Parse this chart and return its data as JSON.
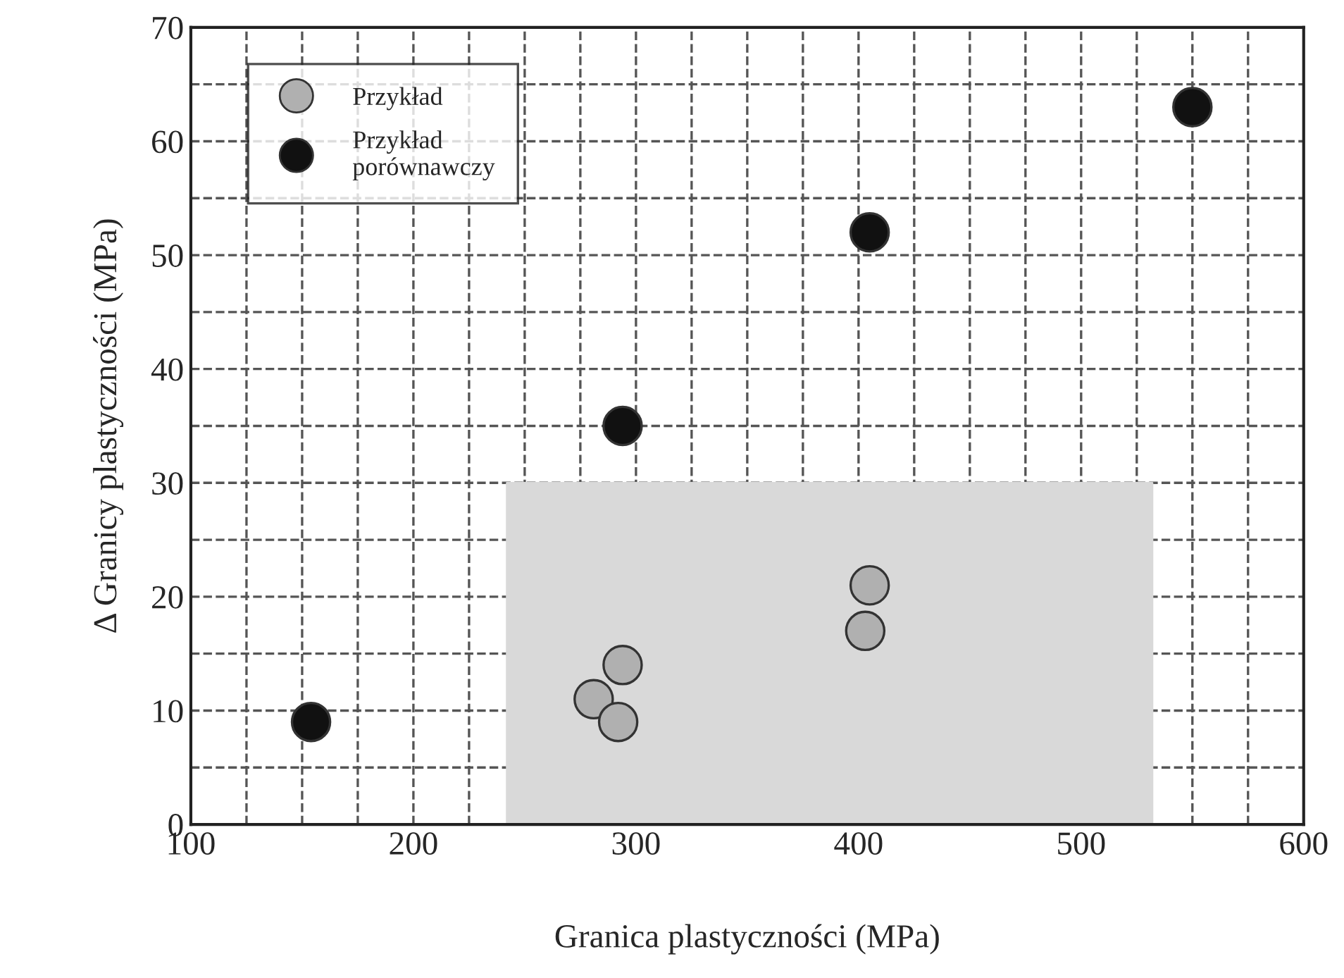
{
  "chart_data": {
    "type": "scatter",
    "xlabel": "Granica plastyczności (MPa)",
    "ylabel": "Δ Granicy plastyczności (MPa)",
    "series": [
      {
        "type": "area",
        "color": "#d9d9d9",
        "x": [
          242,
          532
        ],
        "values": [
          30,
          30
        ]
      },
      {
        "name": "Przykład",
        "color": "#b0b0b0",
        "marker": "circle",
        "x": [
          281,
          292,
          294,
          403,
          405
        ],
        "values": [
          11,
          9,
          14,
          17,
          21
        ]
      },
      {
        "name": "Przykład\nporównawczy",
        "color": "#111111",
        "marker": "circle",
        "x": [
          154,
          294,
          405,
          550
        ],
        "values": [
          9,
          35,
          52,
          63
        ]
      }
    ],
    "xlim": [
      100,
      600
    ],
    "xticks": [
      100,
      {
        "value": 125,
        "label": null
      },
      {
        "value": 150,
        "label": null
      },
      {
        "value": 175,
        "label": null
      },
      200,
      {
        "value": 225,
        "label": null
      },
      {
        "value": 250,
        "label": null
      },
      {
        "value": 275,
        "label": null
      },
      300,
      {
        "value": 325,
        "label": null
      },
      {
        "value": 350,
        "label": null
      },
      {
        "value": 375,
        "label": null
      },
      400,
      {
        "value": 425,
        "label": null
      },
      {
        "value": 450,
        "label": null
      },
      {
        "value": 475,
        "label": null
      },
      500,
      {
        "value": 525,
        "label": null
      },
      {
        "value": 550,
        "label": null
      },
      {
        "value": 575,
        "label": null
      },
      600
    ],
    "ylim": [
      0,
      70
    ],
    "yticks": [
      0,
      {
        "value": 5,
        "label": null
      },
      10,
      {
        "value": 15,
        "label": null
      },
      20,
      {
        "value": 25,
        "label": null
      },
      30,
      {
        "value": 35,
        "label": null
      },
      40,
      {
        "value": 45,
        "label": null
      },
      50,
      {
        "value": 55,
        "label": null
      },
      60,
      {
        "value": 65,
        "label": null
      },
      70
    ],
    "grid": true,
    "legend": "top left"
  }
}
